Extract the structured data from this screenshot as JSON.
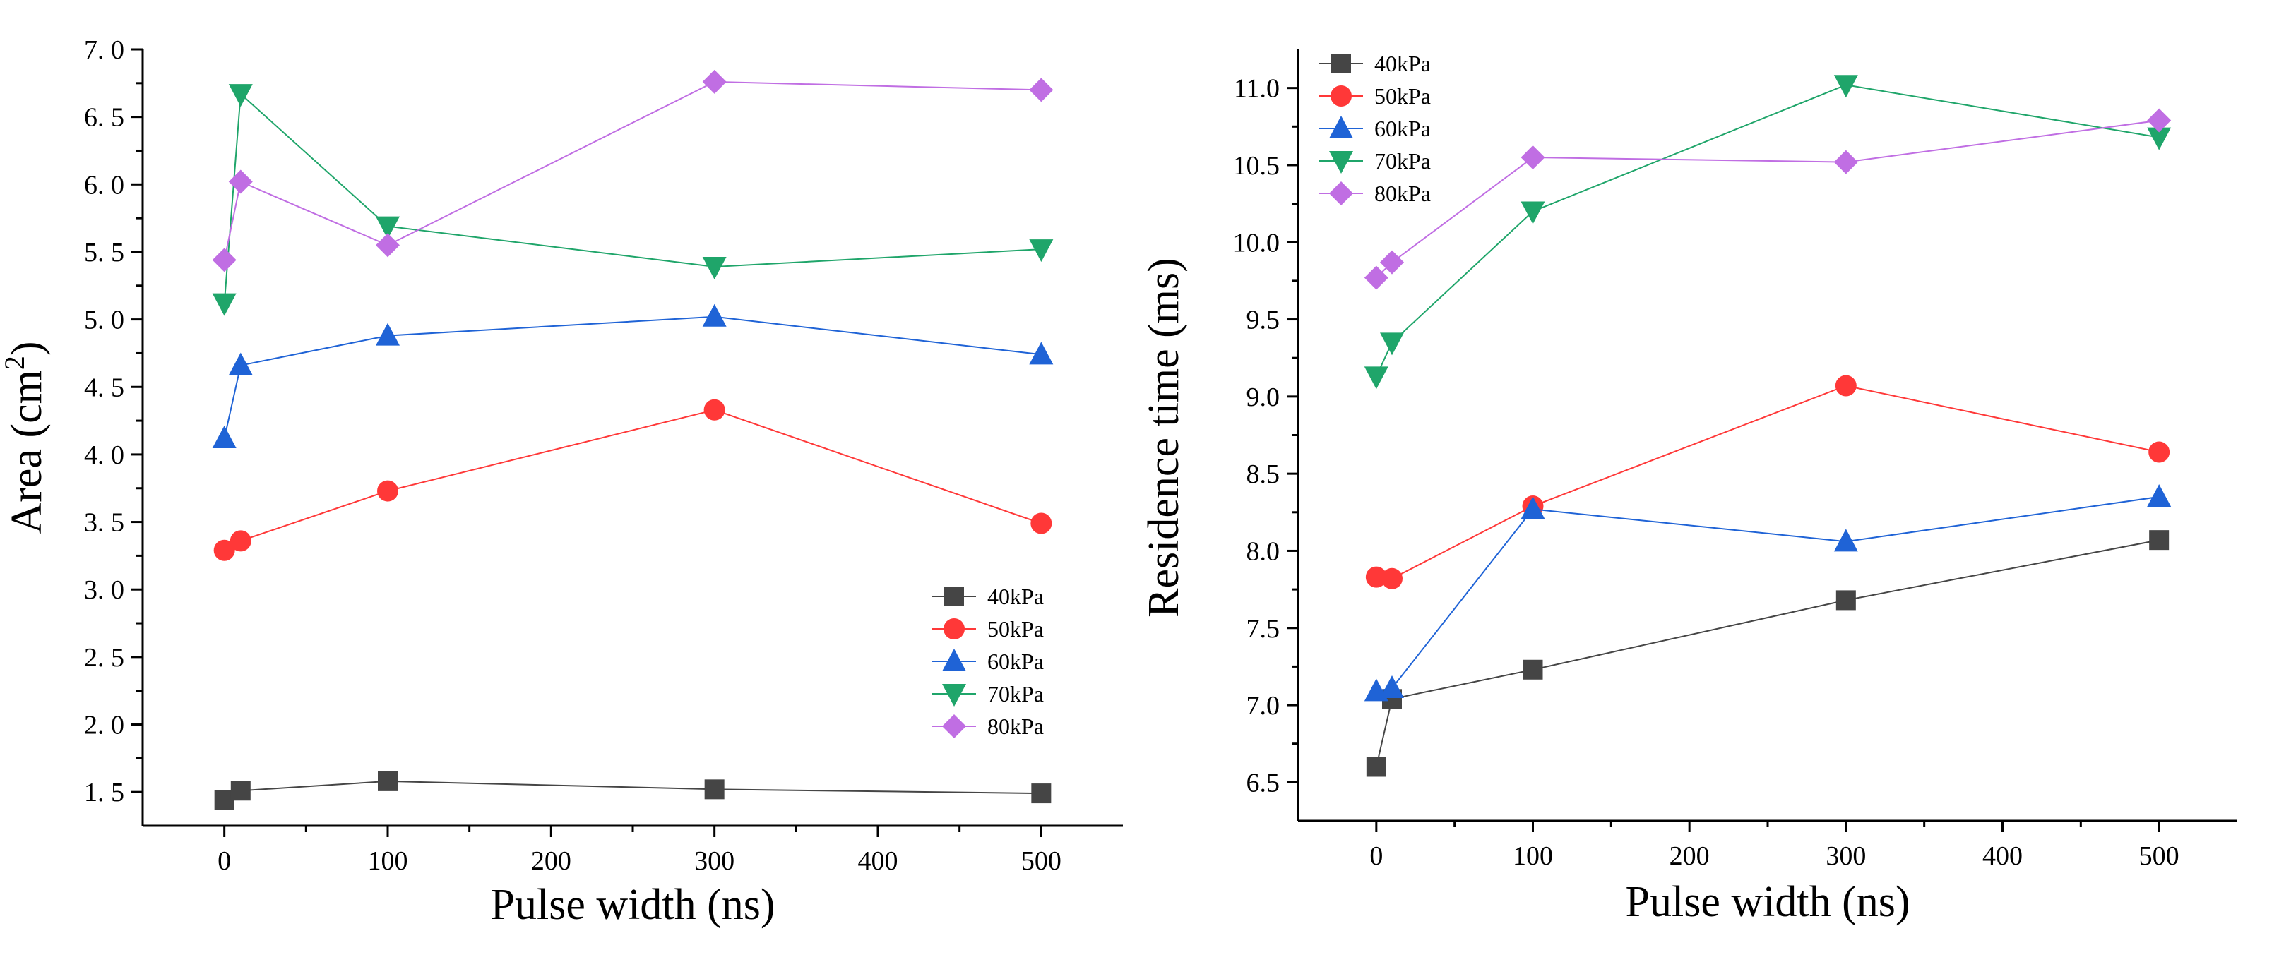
{
  "chart_data": [
    {
      "type": "line",
      "xlabel": "Pulse width (ns)",
      "ylabel": "Area (cm",
      "ylabel_sup": "2",
      "ylabel_tail": ")",
      "xlim": [
        -50,
        550
      ],
      "ylim": [
        1.25,
        7.0
      ],
      "xticks": [
        0,
        100,
        200,
        300,
        400,
        500
      ],
      "xtick_labels": [
        "0",
        "100",
        "200",
        "300",
        "400",
        "500"
      ],
      "yticks": [
        1.5,
        2.0,
        2.5,
        3.0,
        3.5,
        4.0,
        4.5,
        5.0,
        5.5,
        6.0,
        6.5,
        7.0
      ],
      "ytick_labels": [
        "1. 5",
        "2. 0",
        "2. 5",
        "3. 0",
        "3. 5",
        "4. 0",
        "4. 5",
        "5. 0",
        "5. 5",
        "6. 0",
        "6. 5",
        "7. 0"
      ],
      "legend_position": "bottom-right",
      "grid": false,
      "x": [
        0,
        10,
        100,
        300,
        500
      ],
      "series": [
        {
          "name": "40kPa",
          "values": [
            1.44,
            1.51,
            1.58,
            1.52,
            1.49
          ]
        },
        {
          "name": "50kPa",
          "values": [
            3.29,
            3.36,
            3.73,
            4.33,
            3.49
          ]
        },
        {
          "name": "60kPa",
          "values": [
            4.12,
            4.66,
            4.88,
            5.02,
            4.74
          ]
        },
        {
          "name": "70kPa",
          "values": [
            5.12,
            6.67,
            5.69,
            5.39,
            5.52
          ]
        },
        {
          "name": "80kPa",
          "values": [
            5.44,
            6.02,
            5.55,
            6.76,
            6.7
          ]
        }
      ]
    },
    {
      "type": "line",
      "xlabel": "Pulse width (ns)",
      "ylabel": "Residence time (ms)",
      "xlim": [
        -50,
        550
      ],
      "ylim": [
        6.25,
        11.25
      ],
      "xticks": [
        0,
        100,
        200,
        300,
        400,
        500
      ],
      "xtick_labels": [
        "0",
        "100",
        "200",
        "300",
        "400",
        "500"
      ],
      "yticks": [
        6.5,
        7.0,
        7.5,
        8.0,
        8.5,
        9.0,
        9.5,
        10.0,
        10.5,
        11.0
      ],
      "ytick_labels": [
        "6.5",
        "7.0",
        "7.5",
        "8.0",
        "8.5",
        "9.0",
        "9.5",
        "10.0",
        "10.5",
        "11.0"
      ],
      "legend_position": "top-left",
      "grid": false,
      "x": [
        0,
        10,
        100,
        300,
        500
      ],
      "series": [
        {
          "name": "40kPa",
          "values": [
            6.6,
            7.04,
            7.23,
            7.68,
            8.07
          ]
        },
        {
          "name": "50kPa",
          "values": [
            7.83,
            7.82,
            8.29,
            9.07,
            8.64
          ]
        },
        {
          "name": "60kPa",
          "values": [
            7.09,
            7.11,
            8.27,
            8.06,
            8.35
          ]
        },
        {
          "name": "70kPa",
          "values": [
            9.13,
            9.35,
            10.2,
            11.02,
            10.68
          ]
        },
        {
          "name": "80kPa",
          "values": [
            9.77,
            9.87,
            10.55,
            10.52,
            10.79
          ]
        }
      ]
    }
  ],
  "styles": {
    "series_colors": [
      "#454545",
      "#ff3838",
      "#1f63d6",
      "#1fa56a",
      "#c06ee3"
    ],
    "series_markers": [
      "square",
      "circle",
      "triangle-up",
      "triangle-down",
      "diamond"
    ],
    "axis_color": "#000000"
  }
}
